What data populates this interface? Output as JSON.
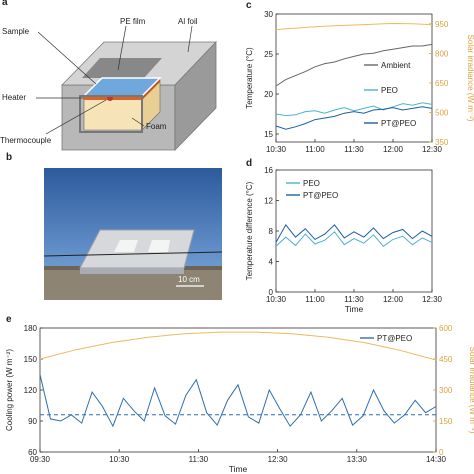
{
  "panel_a": {
    "letter": "a",
    "labels": {
      "sample": "Sample",
      "pe_film": "PE film",
      "al_foil": "Al foil",
      "heater": "Heater",
      "thermocouple": "Thermocouple",
      "foam": "Foam"
    }
  },
  "panel_b": {
    "letter": "b",
    "scale_bar": "10 cm"
  },
  "chart_data": [
    {
      "id": "c",
      "letter": "c",
      "type": "line",
      "ylabel": "Temperature (°C)",
      "y2label": "Solar irradiance (W m⁻²)",
      "ylim": [
        14,
        30
      ],
      "y2lim": [
        350,
        1000
      ],
      "yticks": [
        15,
        20,
        25,
        30
      ],
      "y2ticks": [
        350,
        500,
        650,
        800,
        950
      ],
      "xticks": [
        "10:30",
        "11:00",
        "11:30",
        "12:00",
        "12:30"
      ],
      "series": [
        {
          "name": "Ambient",
          "color": "#666666",
          "axis": "left",
          "values": [
            21.0,
            21.8,
            22.3,
            22.8,
            23.4,
            23.8,
            24.0,
            24.4,
            24.7,
            25.0,
            25.1,
            25.4,
            25.6,
            25.8,
            26.0,
            26.0,
            26.2
          ]
        },
        {
          "name": "PEO",
          "color": "#4db3c8",
          "axis": "left",
          "values": [
            17.5,
            17.3,
            17.4,
            17.8,
            17.9,
            17.6,
            18.0,
            18.3,
            17.9,
            18.2,
            18.5,
            18.0,
            18.4,
            18.8,
            18.6,
            18.9,
            18.7
          ]
        },
        {
          "name": "PT@PEO",
          "color": "#1d5fa5",
          "axis": "left",
          "values": [
            16.0,
            15.6,
            15.9,
            16.3,
            16.8,
            17.0,
            17.2,
            17.6,
            17.8,
            17.6,
            18.0,
            18.1,
            18.3,
            18.0,
            18.2,
            18.4,
            18.2
          ]
        },
        {
          "name": "",
          "color": "#f0b860",
          "axis": "right",
          "values": [
            920,
            925,
            928,
            932,
            935,
            938,
            940,
            942,
            944,
            946,
            948,
            950,
            952,
            951,
            950,
            948,
            945
          ]
        }
      ]
    },
    {
      "id": "d",
      "letter": "d",
      "type": "line",
      "ylabel": "Temperature difference (°C)",
      "xlabel": "Time",
      "ylim": [
        0,
        16
      ],
      "yticks": [
        0,
        4,
        8,
        12,
        16
      ],
      "xticks": [
        "10:30",
        "11:00",
        "11:30",
        "12:00",
        "12:30"
      ],
      "series": [
        {
          "name": "PEO",
          "color": "#4db3c8",
          "values": [
            6.0,
            7.2,
            6.1,
            7.6,
            6.3,
            6.8,
            7.9,
            6.2,
            7.0,
            6.4,
            7.5,
            6.0,
            6.9,
            7.3,
            6.2,
            7.1,
            6.5
          ]
        },
        {
          "name": "PT@PEO",
          "color": "#1d5fa5",
          "values": [
            6.5,
            8.8,
            7.2,
            8.3,
            6.9,
            7.6,
            8.8,
            7.1,
            7.9,
            7.2,
            8.4,
            7.0,
            7.8,
            8.2,
            7.0,
            8.0,
            7.3
          ]
        }
      ]
    },
    {
      "id": "e",
      "letter": "e",
      "type": "line",
      "ylabel": "Cooling power (W m⁻²)",
      "y2label": "Solar irradiance (W m⁻²)",
      "xlabel": "Time",
      "ylim": [
        60,
        180
      ],
      "y2lim": [
        0,
        600
      ],
      "yticks": [
        60,
        90,
        120,
        150,
        180
      ],
      "y2ticks": [
        0,
        150,
        300,
        450,
        600
      ],
      "xticks": [
        "09:30",
        "10:30",
        "11:30",
        "12:30",
        "13:30",
        "14:30"
      ],
      "series": [
        {
          "name": "PT@PEO",
          "color": "#2f6fad",
          "axis": "left",
          "values": [
            135,
            92,
            90,
            96,
            88,
            118,
            104,
            85,
            112,
            100,
            90,
            122,
            95,
            87,
            115,
            130,
            98,
            86,
            110,
            125,
            94,
            88,
            120,
            102,
            85,
            96,
            118,
            90,
            100,
            112,
            86,
            95,
            120,
            100,
            88,
            96,
            110,
            98,
            104
          ]
        },
        {
          "name": "",
          "color": "#f0b860",
          "axis": "right",
          "values": [
            450,
            495,
            530,
            555,
            572,
            580,
            580,
            572,
            555,
            530,
            492,
            445
          ]
        },
        {
          "name": "",
          "color": "#2f6fad",
          "axis": "left",
          "dashed": true,
          "values": [
            96,
            96
          ]
        }
      ]
    }
  ]
}
